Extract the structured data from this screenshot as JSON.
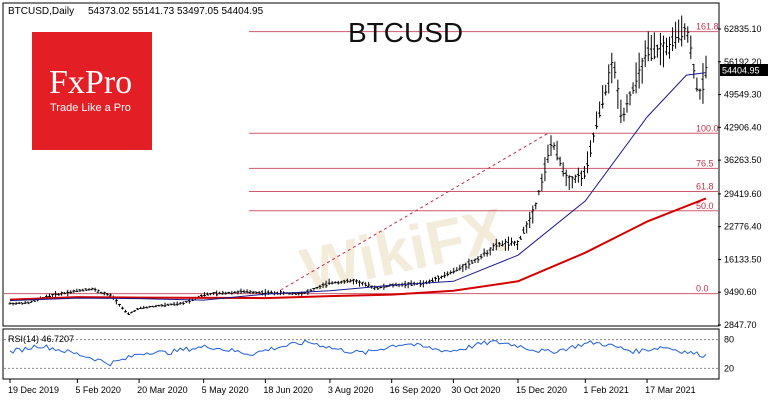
{
  "header": {
    "symbol_line": "BTCUSD,Daily",
    "ohlc": "54373.02 55141.73 53497.05 54404.95"
  },
  "logo": {
    "brand": "FxPro",
    "tagline": "Trade Like a Pro",
    "color": "#e31e24"
  },
  "watermark": "WikiFX",
  "chart_data": {
    "type": "candlestick",
    "title": "BTCUSD",
    "timeframe": "Daily",
    "x_ticks": [
      "19 Dec 2019",
      "5 Feb 2020",
      "20 Mar 2020",
      "5 May 2020",
      "18 Jun 2020",
      "3 Aug 2020",
      "16 Sep 2020",
      "30 Oct 2020",
      "15 Dec 2020",
      "1 Feb 2021",
      "17 Mar 2021"
    ],
    "y_ticks": [
      "62835.10",
      "56192.20",
      "49549.30",
      "42906.40",
      "36263.50",
      "29419.60",
      "22776.40",
      "16133.50",
      "9490.60",
      "2847.70"
    ],
    "current_price": "54404.95",
    "fibonacci_levels": [
      {
        "label": "161.8",
        "value": 62300
      },
      {
        "label": "100.0",
        "value": 41700
      },
      {
        "label": "76.5",
        "value": 34600
      },
      {
        "label": "61.8",
        "value": 29900
      },
      {
        "label": "50.0",
        "value": 26000
      },
      {
        "label": "0.0",
        "value": 9200
      }
    ],
    "price_series": [
      [
        "19 Dec 2019",
        7200
      ],
      [
        "1 Jan 2020",
        7300
      ],
      [
        "15 Jan 2020",
        8700
      ],
      [
        "5 Feb 2020",
        9800
      ],
      [
        "15 Feb 2020",
        10200
      ],
      [
        "1 Mar 2020",
        8600
      ],
      [
        "12 Mar 2020",
        5000
      ],
      [
        "20 Mar 2020",
        6200
      ],
      [
        "1 Apr 2020",
        6700
      ],
      [
        "20 Apr 2020",
        7200
      ],
      [
        "5 May 2020",
        9000
      ],
      [
        "1 Jun 2020",
        9600
      ],
      [
        "18 Jun 2020",
        9400
      ],
      [
        "15 Jul 2020",
        9200
      ],
      [
        "3 Aug 2020",
        11400
      ],
      [
        "20 Aug 2020",
        11800
      ],
      [
        "5 Sep 2020",
        10300
      ],
      [
        "16 Sep 2020",
        10900
      ],
      [
        "10 Oct 2020",
        11300
      ],
      [
        "30 Oct 2020",
        13700
      ],
      [
        "15 Nov 2020",
        16000
      ],
      [
        "1 Dec 2020",
        19200
      ],
      [
        "15 Dec 2020",
        19400
      ],
      [
        "27 Dec 2020",
        26500
      ],
      [
        "8 Jan 2021",
        40000
      ],
      [
        "20 Jan 2021",
        32000
      ],
      [
        "1 Feb 2021",
        33500
      ],
      [
        "10 Feb 2021",
        45000
      ],
      [
        "21 Feb 2021",
        56000
      ],
      [
        "27 Feb 2021",
        45000
      ],
      [
        "17 Mar 2021",
        58000
      ],
      [
        "1 Apr 2021",
        59000
      ],
      [
        "14 Apr 2021",
        63500
      ],
      [
        "23 Apr 2021",
        49000
      ],
      [
        "28 Apr 2021",
        54404.95
      ]
    ],
    "ma_fast": [
      [
        "19 Dec 2019",
        7800
      ],
      [
        "5 Feb 2020",
        8300
      ],
      [
        "20 Mar 2020",
        8200
      ],
      [
        "5 May 2020",
        7900
      ],
      [
        "18 Jun 2020",
        9100
      ],
      [
        "3 Aug 2020",
        9800
      ],
      [
        "16 Sep 2020",
        10900
      ],
      [
        "30 Oct 2020",
        11700
      ],
      [
        "15 Dec 2020",
        17000
      ],
      [
        "1 Feb 2021",
        28000
      ],
      [
        "17 Mar 2021",
        45000
      ],
      [
        "14 Apr 2021",
        53500
      ],
      [
        "28 Apr 2021",
        54000
      ]
    ],
    "ma_slow": [
      [
        "19 Dec 2019",
        8000
      ],
      [
        "5 Feb 2020",
        8500
      ],
      [
        "20 Mar 2020",
        8400
      ],
      [
        "18 Jun 2020",
        8300
      ],
      [
        "3 Aug 2020",
        8700
      ],
      [
        "16 Sep 2020",
        9000
      ],
      [
        "30 Oct 2020",
        9800
      ],
      [
        "15 Dec 2020",
        11700
      ],
      [
        "1 Feb 2021",
        17500
      ],
      [
        "17 Mar 2021",
        23800
      ],
      [
        "28 Apr 2021",
        28500
      ]
    ],
    "ma_fast_color": "#1a1a8c",
    "ma_slow_color": "#d40000",
    "fib_color": "#c0304a",
    "rsi": {
      "label": "RSI(14) 46.7207",
      "y_ticks": [
        "80",
        "20"
      ],
      "values": [
        55,
        60,
        68,
        62,
        55,
        48,
        40,
        30,
        38,
        50,
        55,
        52,
        58,
        62,
        66,
        60,
        55,
        50,
        58,
        65,
        70,
        75,
        68,
        60,
        55,
        52,
        60,
        68,
        72,
        65,
        60,
        56,
        62,
        70,
        75,
        72,
        66,
        58,
        54,
        60,
        68,
        74,
        70,
        62,
        55,
        60,
        65,
        58,
        52,
        46.7
      ]
    }
  }
}
